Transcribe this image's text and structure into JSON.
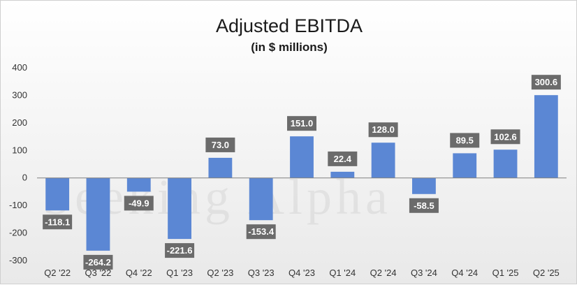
{
  "chart_data": {
    "type": "bar",
    "title": "Adjusted EBITDA",
    "subtitle": "(in $ millions)",
    "xlabel": "",
    "ylabel": "",
    "categories": [
      "Q2 '22",
      "Q3 '22",
      "Q4 '22",
      "Q1 '23",
      "Q2 '23",
      "Q3 '23",
      "Q4 '23",
      "Q1 '24",
      "Q2 '24",
      "Q3 '24",
      "Q4 '24",
      "Q1 '25",
      "Q2 '25"
    ],
    "values": [
      -118.1,
      -264.2,
      -49.9,
      -221.6,
      73.0,
      -153.4,
      151.0,
      22.4,
      128.0,
      -58.5,
      89.5,
      102.6,
      300.6
    ],
    "data_labels": [
      "-118.1",
      "-264.2",
      "-49.9",
      "-221.6",
      "73.0",
      "-153.4",
      "151.0",
      "22.4",
      "128.0",
      "-58.5",
      "89.5",
      "102.6",
      "300.6"
    ],
    "ylim": [
      -300,
      400
    ],
    "yticks": [
      -300,
      -200,
      -100,
      0,
      100,
      200,
      300,
      400
    ],
    "grid": false,
    "bar_color": "#5b87d4",
    "label_bg_color": "#6b6b6b",
    "watermark": "Seeking Alpha"
  }
}
